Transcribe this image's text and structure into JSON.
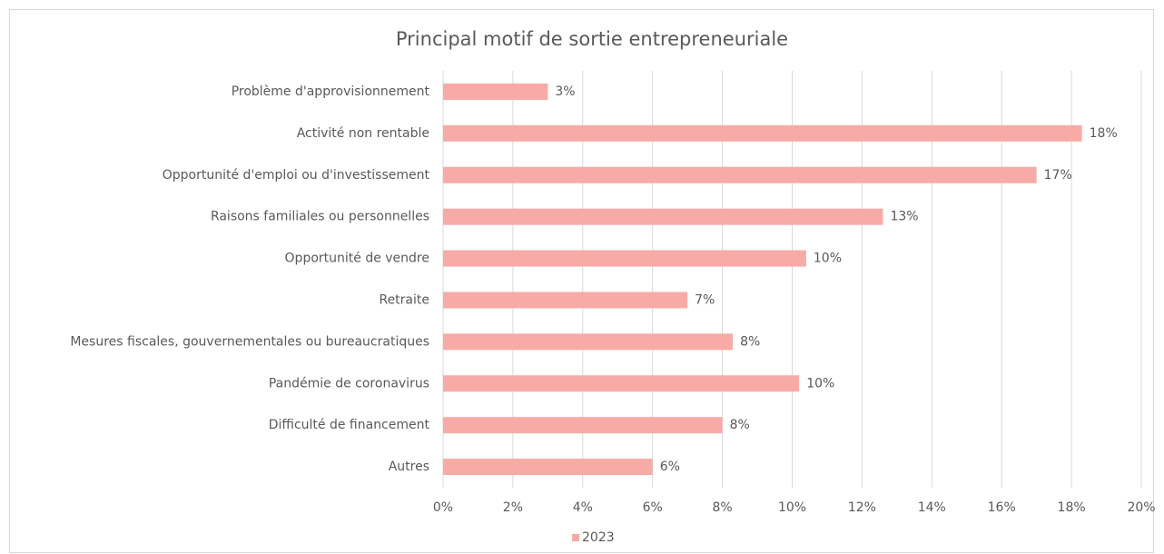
{
  "chart_data": {
    "type": "bar",
    "orientation": "horizontal",
    "title": "Principal motif de sortie entrepreneuriale",
    "categories": [
      "Problème d'approvisionnement",
      "Activité non rentable",
      "Opportunité d'emploi ou d'investissement",
      "Raisons familiales ou personnelles",
      "Opportunité de vendre",
      "Retraite",
      "Mesures fiscales, gouvernementales ou bureaucratiques",
      "Pandémie de coronavirus",
      "Difficulté de financement",
      "Autres"
    ],
    "series": [
      {
        "name": "2023",
        "color": "#f8aba6",
        "values": [
          3.0,
          18.3,
          17.0,
          12.6,
          10.4,
          7.0,
          8.3,
          10.2,
          8.0,
          6.0
        ],
        "value_labels": [
          "3%",
          "18%",
          "17%",
          "13%",
          "10%",
          "7%",
          "8%",
          "10%",
          "8%",
          "6%"
        ]
      }
    ],
    "xlim": [
      0,
      20
    ],
    "xticks": [
      {
        "value": 0,
        "label": "0%"
      },
      {
        "value": 2,
        "label": "2%"
      },
      {
        "value": 4,
        "label": "4%"
      },
      {
        "value": 6,
        "label": "6%"
      },
      {
        "value": 8,
        "label": "8%"
      },
      {
        "value": 10,
        "label": "10%"
      },
      {
        "value": 12,
        "label": "12%"
      },
      {
        "value": 14,
        "label": "14%"
      },
      {
        "value": 16,
        "label": "16%"
      },
      {
        "value": 18,
        "label": "18%"
      },
      {
        "value": 20,
        "label": "20%"
      }
    ],
    "grid": true,
    "legend": "bottom"
  }
}
